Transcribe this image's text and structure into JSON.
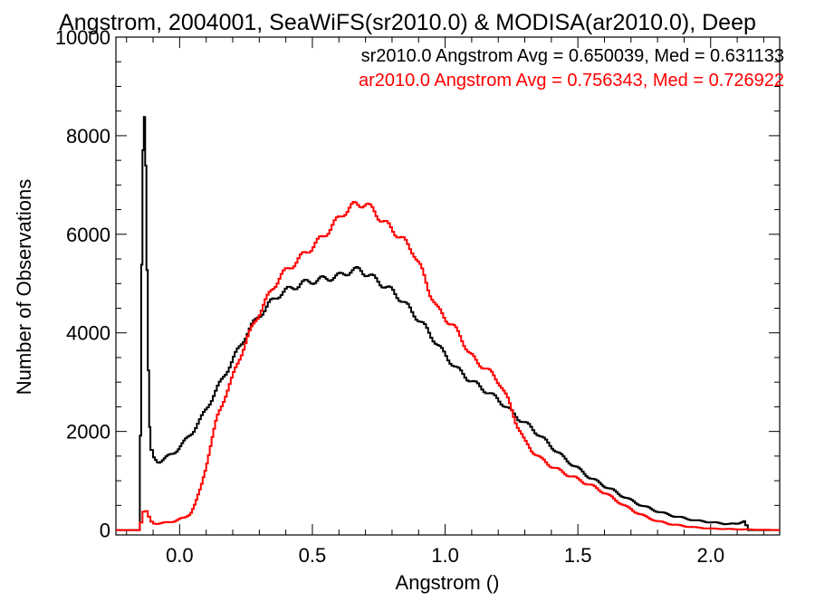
{
  "chart_data": {
    "type": "line",
    "title": "Angstrom, 2004001, SeaWiFS(sr2010.0) & MODISA(ar2010.0), Deep",
    "xlabel": "Angstrom ()",
    "ylabel": "Number of Observations",
    "xlim": [
      -0.24,
      2.26
    ],
    "ylim": [
      -100,
      10000
    ],
    "x_ticks": [
      {
        "value": 0.0,
        "label": "0.0"
      },
      {
        "value": 0.5,
        "label": "0.5"
      },
      {
        "value": 1.0,
        "label": "1.0"
      },
      {
        "value": 1.5,
        "label": "1.5"
      },
      {
        "value": 2.0,
        "label": "2.0"
      }
    ],
    "y_ticks": [
      {
        "value": 0,
        "label": "0"
      },
      {
        "value": 2000,
        "label": "2000"
      },
      {
        "value": 4000,
        "label": "4000"
      },
      {
        "value": 6000,
        "label": "6000"
      },
      {
        "value": 8000,
        "label": "8000"
      },
      {
        "value": 10000,
        "label": "10000"
      }
    ],
    "grid": false,
    "legend_position": "top-right",
    "step": true,
    "series": [
      {
        "name": "sr2010.0",
        "legend_text": "sr2010.0 Angstrom Avg = 0.650039, Med = 0.631133",
        "color": "#000000",
        "points": [
          [
            -0.15,
            0
          ],
          [
            -0.145,
            3900
          ],
          [
            -0.14,
            7000
          ],
          [
            -0.135,
            8550
          ],
          [
            -0.13,
            8300
          ],
          [
            -0.125,
            6500
          ],
          [
            -0.12,
            4000
          ],
          [
            -0.115,
            2400
          ],
          [
            -0.11,
            1700
          ],
          [
            -0.1,
            1480
          ],
          [
            -0.08,
            1390
          ],
          [
            -0.06,
            1430
          ],
          [
            -0.04,
            1500
          ],
          [
            -0.02,
            1580
          ],
          [
            0.0,
            1680
          ],
          [
            0.02,
            1800
          ],
          [
            0.05,
            2000
          ],
          [
            0.08,
            2250
          ],
          [
            0.11,
            2550
          ],
          [
            0.14,
            2850
          ],
          [
            0.17,
            3150
          ],
          [
            0.2,
            3450
          ],
          [
            0.23,
            3750
          ],
          [
            0.26,
            4050
          ],
          [
            0.3,
            4350
          ],
          [
            0.34,
            4600
          ],
          [
            0.38,
            4800
          ],
          [
            0.42,
            4900
          ],
          [
            0.46,
            5000
          ],
          [
            0.5,
            5050
          ],
          [
            0.55,
            5100
          ],
          [
            0.6,
            5150
          ],
          [
            0.64,
            5250
          ],
          [
            0.68,
            5280
          ],
          [
            0.72,
            5150
          ],
          [
            0.76,
            5000
          ],
          [
            0.8,
            4850
          ],
          [
            0.84,
            4650
          ],
          [
            0.88,
            4400
          ],
          [
            0.92,
            4150
          ],
          [
            0.96,
            3850
          ],
          [
            1.0,
            3550
          ],
          [
            1.04,
            3300
          ],
          [
            1.08,
            3100
          ],
          [
            1.12,
            2950
          ],
          [
            1.16,
            2800
          ],
          [
            1.2,
            2650
          ],
          [
            1.24,
            2450
          ],
          [
            1.28,
            2250
          ],
          [
            1.32,
            2100
          ],
          [
            1.36,
            1900
          ],
          [
            1.4,
            1700
          ],
          [
            1.45,
            1450
          ],
          [
            1.5,
            1250
          ],
          [
            1.55,
            1050
          ],
          [
            1.6,
            900
          ],
          [
            1.65,
            750
          ],
          [
            1.7,
            600
          ],
          [
            1.75,
            480
          ],
          [
            1.8,
            380
          ],
          [
            1.85,
            300
          ],
          [
            1.9,
            240
          ],
          [
            1.95,
            190
          ],
          [
            2.0,
            160
          ],
          [
            2.05,
            130
          ],
          [
            2.1,
            120
          ],
          [
            2.13,
            200
          ],
          [
            2.14,
            0
          ]
        ]
      },
      {
        "name": "ar2010.0",
        "legend_text": "ar2010.0 Angstrom Avg = 0.756343, Med = 0.726922",
        "color": "#ff0000",
        "points": [
          [
            -0.15,
            0
          ],
          [
            -0.14,
            320
          ],
          [
            -0.13,
            420
          ],
          [
            -0.12,
            320
          ],
          [
            -0.11,
            200
          ],
          [
            -0.1,
            140
          ],
          [
            -0.08,
            130
          ],
          [
            -0.05,
            150
          ],
          [
            -0.02,
            180
          ],
          [
            0.0,
            220
          ],
          [
            0.02,
            250
          ],
          [
            0.04,
            330
          ],
          [
            0.06,
            550
          ],
          [
            0.08,
            850
          ],
          [
            0.1,
            1300
          ],
          [
            0.12,
            1800
          ],
          [
            0.14,
            2250
          ],
          [
            0.17,
            2700
          ],
          [
            0.2,
            3100
          ],
          [
            0.23,
            3550
          ],
          [
            0.26,
            3950
          ],
          [
            0.29,
            4300
          ],
          [
            0.32,
            4600
          ],
          [
            0.35,
            4900
          ],
          [
            0.38,
            5150
          ],
          [
            0.42,
            5350
          ],
          [
            0.46,
            5550
          ],
          [
            0.5,
            5750
          ],
          [
            0.54,
            5950
          ],
          [
            0.58,
            6200
          ],
          [
            0.62,
            6450
          ],
          [
            0.66,
            6600
          ],
          [
            0.7,
            6620
          ],
          [
            0.73,
            6480
          ],
          [
            0.76,
            6300
          ],
          [
            0.8,
            6100
          ],
          [
            0.84,
            5900
          ],
          [
            0.88,
            5650
          ],
          [
            0.91,
            5300
          ],
          [
            0.94,
            4850
          ],
          [
            0.97,
            4500
          ],
          [
            1.0,
            4300
          ],
          [
            1.03,
            4150
          ],
          [
            1.06,
            3900
          ],
          [
            1.09,
            3600
          ],
          [
            1.12,
            3400
          ],
          [
            1.15,
            3300
          ],
          [
            1.18,
            3150
          ],
          [
            1.21,
            2950
          ],
          [
            1.24,
            2600
          ],
          [
            1.27,
            2150
          ],
          [
            1.3,
            1800
          ],
          [
            1.33,
            1600
          ],
          [
            1.36,
            1450
          ],
          [
            1.4,
            1300
          ],
          [
            1.44,
            1180
          ],
          [
            1.48,
            1080
          ],
          [
            1.52,
            980
          ],
          [
            1.56,
            880
          ],
          [
            1.6,
            760
          ],
          [
            1.64,
            620
          ],
          [
            1.68,
            480
          ],
          [
            1.72,
            360
          ],
          [
            1.76,
            260
          ],
          [
            1.8,
            180
          ],
          [
            1.85,
            120
          ],
          [
            1.9,
            80
          ],
          [
            1.95,
            50
          ],
          [
            2.0,
            30
          ],
          [
            2.1,
            15
          ],
          [
            2.25,
            0
          ]
        ]
      }
    ]
  }
}
